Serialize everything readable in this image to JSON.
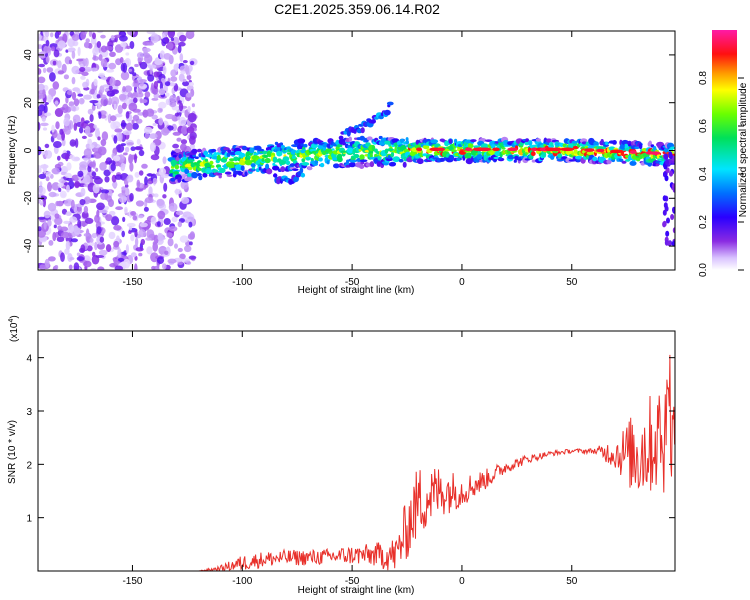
{
  "figure_title": "C2E1.2025.359.06.14.R02",
  "chart_data": [
    {
      "type": "heatmap",
      "panel": "top",
      "title": "C2E1.2025.359.06.14.R02",
      "xlabel": "Height of straight line (km)",
      "ylabel": "Frequency (Hz)",
      "xlim": [
        -193,
        97
      ],
      "ylim": [
        -50,
        50
      ],
      "xticks": [
        -150,
        -100,
        -50,
        0,
        50
      ],
      "yticks": [
        -40,
        -20,
        0,
        20,
        40
      ],
      "colorbar": {
        "label": "Normalized spectral amplitude",
        "range": [
          0,
          1
        ],
        "ticks": [
          "0.0",
          "0.2",
          "0.4",
          "0.6",
          "0.8"
        ],
        "colormap": "rainbow (violet → blue → cyan → green → yellow → red → magenta)"
      },
      "features": [
        {
          "desc": "scattered noise",
          "x_range": [
            -193,
            -122
          ],
          "y_range": [
            -50,
            50
          ],
          "amplitude": 0.15
        },
        {
          "desc": "main track",
          "points": [
            [
              -130,
              -7
            ],
            [
              -100,
              -4
            ],
            [
              -75,
              -2
            ],
            [
              -50,
              -1
            ],
            [
              -25,
              0
            ],
            [
              0,
              0
            ],
            [
              25,
              0
            ],
            [
              50,
              0
            ],
            [
              75,
              -1
            ],
            [
              95,
              -2
            ]
          ],
          "amplitude": 0.6
        },
        {
          "desc": "upper branch",
          "points": [
            [
              -55,
              6
            ],
            [
              -45,
              10
            ],
            [
              -35,
              16
            ],
            [
              -32,
              19
            ]
          ],
          "amplitude": 0.3
        },
        {
          "desc": "lower branch",
          "points": [
            [
              -85,
              -11
            ],
            [
              -80,
              -13
            ],
            [
              -72,
              -9
            ]
          ],
          "amplitude": 0.3
        },
        {
          "desc": "edge streak",
          "x_range": [
            92,
            97
          ],
          "y_range": [
            -40,
            0
          ],
          "amplitude": 0.25
        }
      ]
    },
    {
      "type": "line",
      "panel": "bottom",
      "xlabel": "Height of straight line (km)",
      "ylabel": "SNR (10 * v/v)",
      "y_multiplier": "(x10",
      "y_multiplier_exp": "4",
      "xlim": [
        -193,
        97
      ],
      "ylim": [
        0,
        4.5
      ],
      "xticks": [
        -150,
        -100,
        -50,
        0,
        50
      ],
      "yticks": [
        1,
        2,
        3,
        4
      ],
      "color": "#e8302a",
      "envelope": {
        "x": [
          -193,
          -120,
          -110,
          -100,
          -90,
          -80,
          -70,
          -60,
          -50,
          -40,
          -30,
          -25,
          -20,
          -10,
          0,
          10,
          20,
          30,
          40,
          50,
          60,
          70,
          80,
          90,
          95,
          97
        ],
        "y": [
          0,
          0,
          0.05,
          0.15,
          0.22,
          0.25,
          0.25,
          0.27,
          0.3,
          0.3,
          0.3,
          0.8,
          1.3,
          1.5,
          1.5,
          1.7,
          1.95,
          2.1,
          2.2,
          2.25,
          2.25,
          2.2,
          2.2,
          2.5,
          2.7,
          2.5
        ],
        "noise": [
          0,
          0,
          0.05,
          0.15,
          0.15,
          0.15,
          0.15,
          0.15,
          0.18,
          0.22,
          0.35,
          0.6,
          0.7,
          0.5,
          0.3,
          0.2,
          0.12,
          0.08,
          0.05,
          0.04,
          0.05,
          0.3,
          0.9,
          1.0,
          1.4,
          0.6
        ]
      }
    }
  ]
}
